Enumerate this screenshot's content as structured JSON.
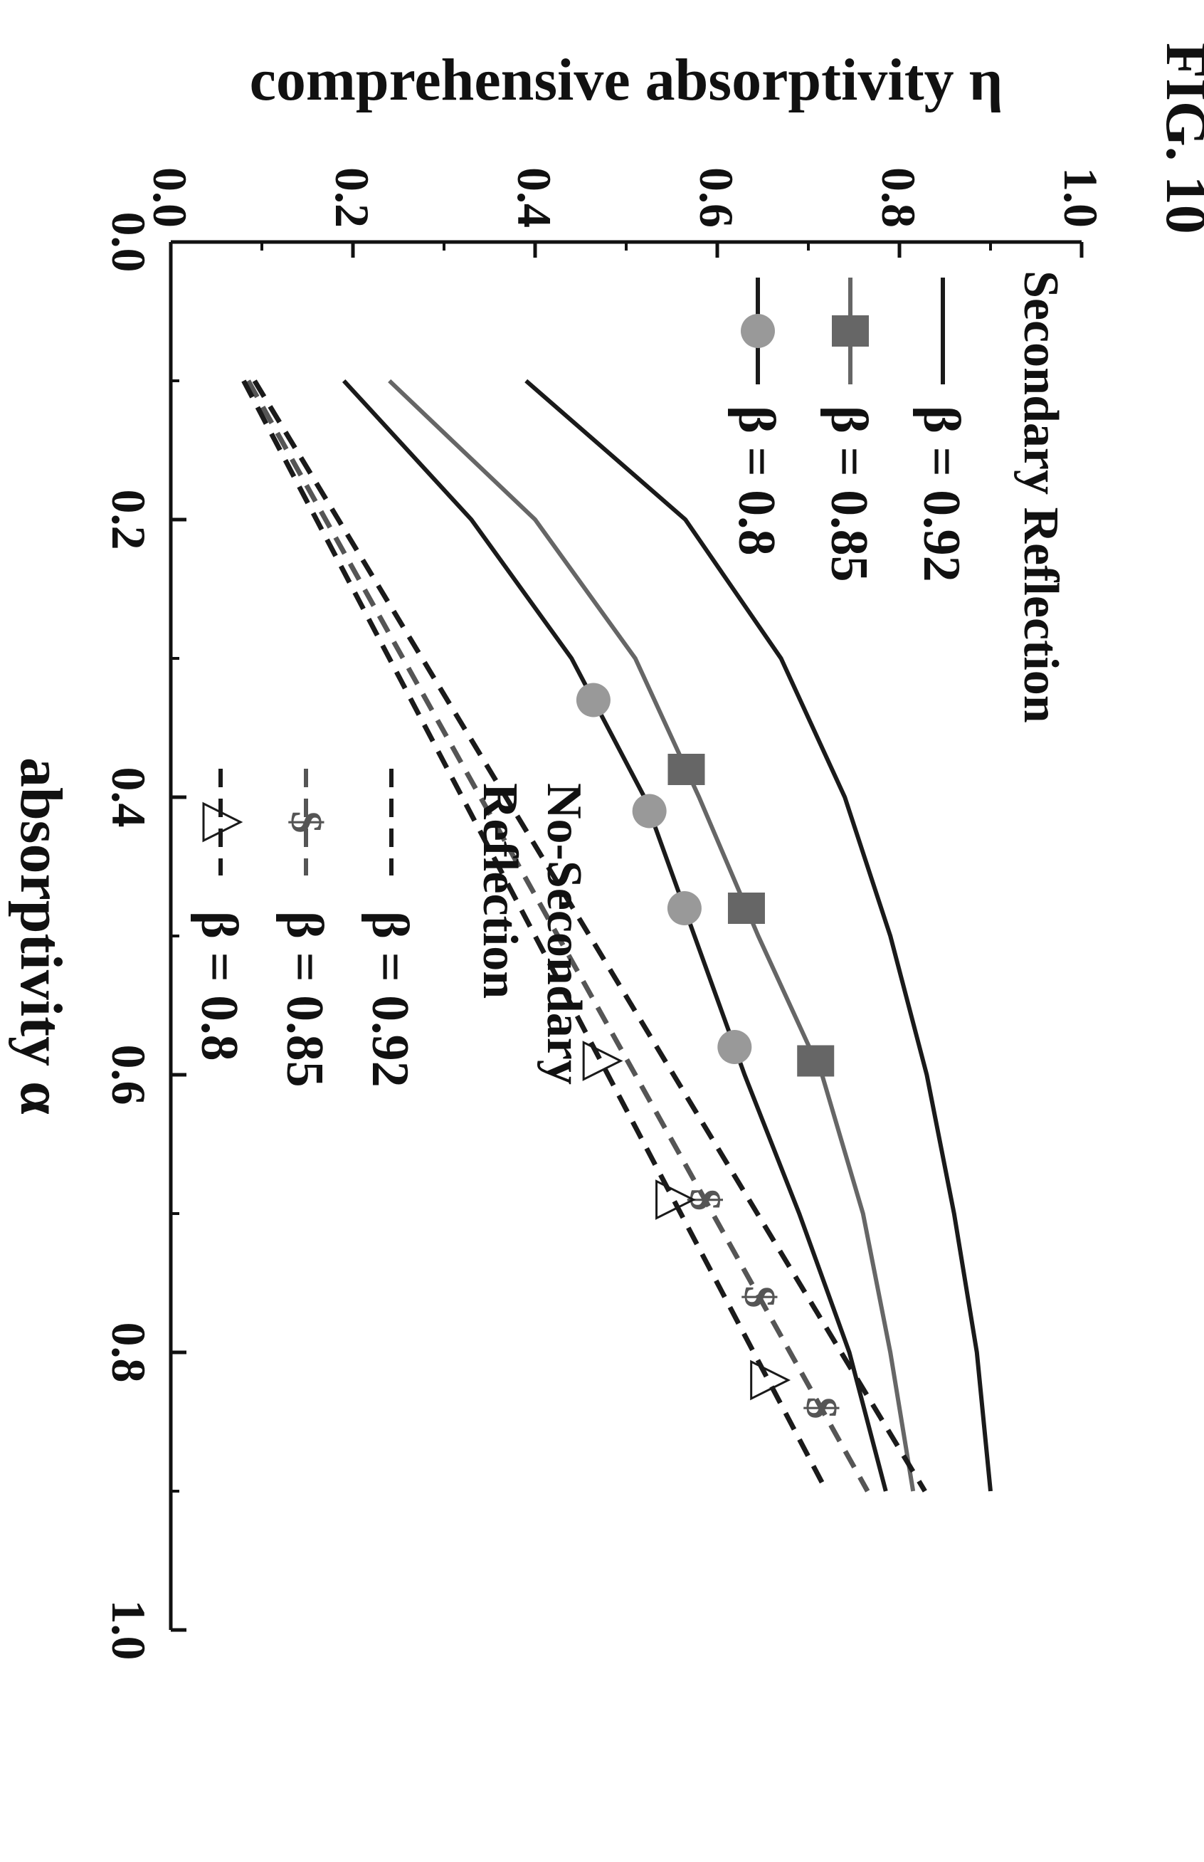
{
  "figure_label": "FIG. 10",
  "chart_data": {
    "type": "line",
    "xlabel": "absorptivity α",
    "ylabel": "comprehensive absorptivity η",
    "xlim": [
      0.0,
      1.0
    ],
    "ylim": [
      0.0,
      1.0
    ],
    "xticks": [
      "0.0",
      "0.2",
      "0.4",
      "0.6",
      "0.8",
      "1.0"
    ],
    "yticks": [
      "0.0",
      "0.2",
      "0.4",
      "0.6",
      "0.8",
      "1.0"
    ],
    "grid": false,
    "orientation": "rotated 90 degrees clockwise",
    "legend_groups": [
      {
        "title": "Secondary Reflection",
        "entries": [
          "β = 0.92",
          "β = 0.85",
          "β = 0.8"
        ]
      },
      {
        "title_lines": [
          "No-Secondary",
          "Reflection"
        ],
        "entries": [
          "β = 0.92",
          "β = 0.85",
          "β = 0.8"
        ]
      }
    ],
    "x": [
      0.1,
      0.2,
      0.3,
      0.4,
      0.5,
      0.6,
      0.7,
      0.8,
      0.9
    ],
    "series": [
      {
        "name": "β = 0.92",
        "group": "Secondary Reflection",
        "style": "solid",
        "marker": "none",
        "color": "#1a1a1a",
        "values": [
          0.39,
          0.565,
          0.67,
          0.74,
          0.79,
          0.83,
          0.86,
          0.885,
          0.9
        ]
      },
      {
        "name": "β = 0.85",
        "group": "Secondary Reflection",
        "style": "solid",
        "marker": "square",
        "color": "#666666",
        "values": [
          0.24,
          0.4,
          0.51,
          0.58,
          0.645,
          0.715,
          0.76,
          0.79,
          0.815
        ]
      },
      {
        "name": "β = 0.8",
        "group": "Secondary Reflection",
        "style": "solid",
        "marker": "circle",
        "color": "#1a1a1a",
        "values": [
          0.19,
          0.33,
          0.44,
          0.52,
          0.575,
          0.63,
          0.69,
          0.745,
          0.785
        ]
      },
      {
        "name": "β = 0.92",
        "group": "No-Secondary Reflection",
        "style": "dashed",
        "marker": "none",
        "color": "#1a1a1a",
        "values": [
          0.092,
          0.184,
          0.276,
          0.368,
          0.46,
          0.552,
          0.644,
          0.736,
          0.828
        ]
      },
      {
        "name": "β = 0.85",
        "group": "No-Secondary Reflection",
        "style": "dashed",
        "marker": "dollar",
        "color": "#555555",
        "values": [
          0.085,
          0.17,
          0.255,
          0.34,
          0.425,
          0.51,
          0.595,
          0.68,
          0.765
        ]
      },
      {
        "name": "β = 0.8",
        "group": "No-Secondary Reflection",
        "style": "dashed",
        "marker": "triangle",
        "color": "#1a1a1a",
        "values": [
          0.08,
          0.16,
          0.24,
          0.32,
          0.4,
          0.48,
          0.56,
          0.64,
          0.72
        ]
      }
    ],
    "marker_x": {
      "β = 0.85|Secondary Reflection": [
        0.38,
        0.48,
        0.59
      ],
      "β = 0.8|Secondary Reflection": [
        0.33,
        0.41,
        0.48,
        0.58
      ],
      "β = 0.85|No-Secondary Reflection": [
        0.69,
        0.76,
        0.84
      ],
      "β = 0.8|No-Secondary Reflection": [
        0.59,
        0.69,
        0.82
      ]
    }
  }
}
